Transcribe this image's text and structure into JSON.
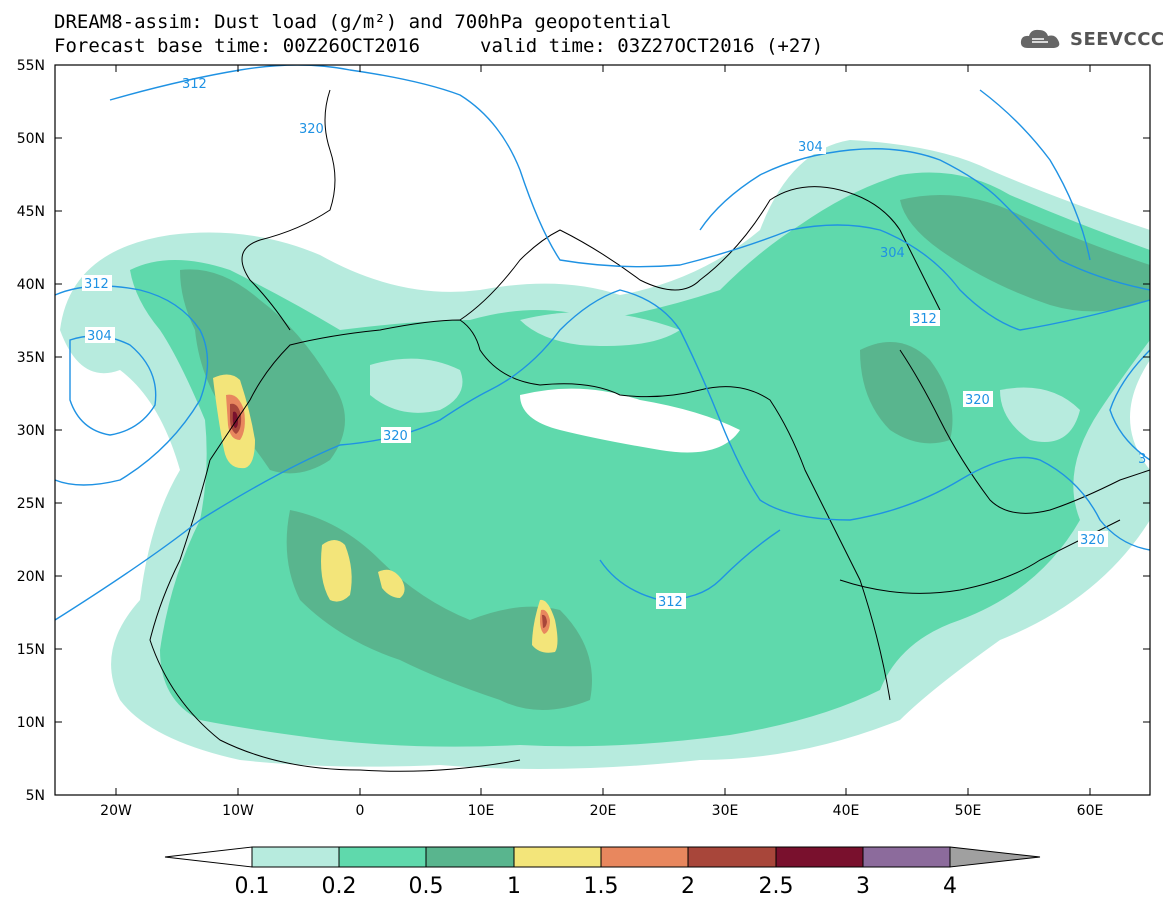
{
  "header": {
    "title_line1": "DREAM8-assim: Dust load (g/m²) and 700hPa geopotential",
    "title_line2": "Forecast base time: 00Z26OCT2016",
    "valid_time": "valid time: 03Z27OCT2016 (+27)"
  },
  "logo": {
    "text": "SEEVCCC",
    "icon": "cloud-icon"
  },
  "map": {
    "lat_labels": [
      "55N",
      "50N",
      "45N",
      "40N",
      "35N",
      "30N",
      "25N",
      "20N",
      "15N",
      "10N",
      "5N"
    ],
    "lon_labels": [
      "20W",
      "10W",
      "0",
      "10E",
      "20E",
      "30E",
      "40E",
      "50E",
      "60E"
    ],
    "contour_labels": [
      "312",
      "304",
      "312",
      "304",
      "320",
      "320",
      "312",
      "320",
      "320",
      "312",
      "304",
      "3"
    ]
  },
  "legend": {
    "tick_labels": [
      "0.1",
      "0.2",
      "0.5",
      "1",
      "1.5",
      "2",
      "2.5",
      "3",
      "4"
    ],
    "colors": [
      "#ffffff",
      "#b7ebde",
      "#5fd9ac",
      "#59b58e",
      "#f3e57a",
      "#e8875e",
      "#a8463a",
      "#79102d",
      "#8c6b9c",
      "#a0a0a0"
    ]
  },
  "colors": {
    "contour": "#1f92e3",
    "dust_01": "#b7ebde",
    "dust_02": "#5fd9ac",
    "dust_05": "#59b58e",
    "dust_1": "#f3e57a",
    "dust_15": "#e8875e",
    "dust_2": "#a8463a",
    "dust_25": "#79102d"
  }
}
